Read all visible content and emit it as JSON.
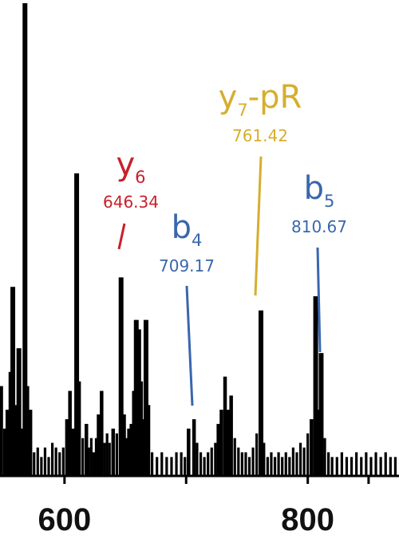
{
  "chart_data": {
    "type": "bar",
    "title": "",
    "xlabel": "",
    "ylabel": "",
    "xlim": [
      545,
      875
    ],
    "ylim": [
      0,
      100
    ],
    "x_ticks": [
      600,
      700,
      800,
      850
    ],
    "x_tick_labels": [
      {
        "value": 600,
        "label": "600"
      },
      {
        "value": 800,
        "label": "800"
      }
    ],
    "grid": false,
    "peaks": [
      {
        "mz": 545.5,
        "intensity": 11
      },
      {
        "mz": 548,
        "intensity": 19
      },
      {
        "mz": 551,
        "intensity": 10
      },
      {
        "mz": 553,
        "intensity": 14
      },
      {
        "mz": 555.5,
        "intensity": 22
      },
      {
        "mz": 557.5,
        "intensity": 40
      },
      {
        "mz": 560,
        "intensity": 15
      },
      {
        "mz": 562.5,
        "intensity": 27
      },
      {
        "mz": 565,
        "intensity": 10
      },
      {
        "mz": 567.5,
        "intensity": 100
      },
      {
        "mz": 569.5,
        "intensity": 19
      },
      {
        "mz": 572,
        "intensity": 14
      },
      {
        "mz": 575,
        "intensity": 5
      },
      {
        "mz": 578,
        "intensity": 6
      },
      {
        "mz": 581,
        "intensity": 4
      },
      {
        "mz": 584,
        "intensity": 6
      },
      {
        "mz": 587,
        "intensity": 4
      },
      {
        "mz": 590,
        "intensity": 7
      },
      {
        "mz": 593,
        "intensity": 6
      },
      {
        "mz": 596,
        "intensity": 5
      },
      {
        "mz": 599,
        "intensity": 6
      },
      {
        "mz": 602,
        "intensity": 12
      },
      {
        "mz": 604.5,
        "intensity": 18
      },
      {
        "mz": 607,
        "intensity": 10
      },
      {
        "mz": 610,
        "intensity": 64
      },
      {
        "mz": 612,
        "intensity": 20
      },
      {
        "mz": 615,
        "intensity": 8
      },
      {
        "mz": 618,
        "intensity": 11
      },
      {
        "mz": 620,
        "intensity": 6
      },
      {
        "mz": 622,
        "intensity": 8
      },
      {
        "mz": 624,
        "intensity": 5
      },
      {
        "mz": 626,
        "intensity": 8
      },
      {
        "mz": 628,
        "intensity": 13
      },
      {
        "mz": 630.5,
        "intensity": 18
      },
      {
        "mz": 633,
        "intensity": 7
      },
      {
        "mz": 635,
        "intensity": 9
      },
      {
        "mz": 637,
        "intensity": 7
      },
      {
        "mz": 640,
        "intensity": 10
      },
      {
        "mz": 643,
        "intensity": 9
      },
      {
        "mz": 646.5,
        "intensity": 42
      },
      {
        "mz": 649,
        "intensity": 13
      },
      {
        "mz": 651,
        "intensity": 8
      },
      {
        "mz": 653,
        "intensity": 10
      },
      {
        "mz": 655,
        "intensity": 11
      },
      {
        "mz": 657,
        "intensity": 18
      },
      {
        "mz": 659,
        "intensity": 33
      },
      {
        "mz": 661,
        "intensity": 31
      },
      {
        "mz": 663,
        "intensity": 20
      },
      {
        "mz": 665,
        "intensity": 12
      },
      {
        "mz": 667,
        "intensity": 33
      },
      {
        "mz": 669,
        "intensity": 15
      },
      {
        "mz": 672,
        "intensity": 5
      },
      {
        "mz": 676,
        "intensity": 4
      },
      {
        "mz": 680,
        "intensity": 5
      },
      {
        "mz": 684,
        "intensity": 4
      },
      {
        "mz": 688,
        "intensity": 4
      },
      {
        "mz": 692,
        "intensity": 5
      },
      {
        "mz": 696,
        "intensity": 5
      },
      {
        "mz": 699,
        "intensity": 4
      },
      {
        "mz": 702,
        "intensity": 10
      },
      {
        "mz": 706.5,
        "intensity": 12
      },
      {
        "mz": 709,
        "intensity": 7
      },
      {
        "mz": 712,
        "intensity": 5
      },
      {
        "mz": 715,
        "intensity": 4
      },
      {
        "mz": 718,
        "intensity": 5
      },
      {
        "mz": 721,
        "intensity": 6
      },
      {
        "mz": 724,
        "intensity": 7
      },
      {
        "mz": 726.5,
        "intensity": 11
      },
      {
        "mz": 729,
        "intensity": 14
      },
      {
        "mz": 732,
        "intensity": 21
      },
      {
        "mz": 734.5,
        "intensity": 14
      },
      {
        "mz": 737,
        "intensity": 17
      },
      {
        "mz": 740,
        "intensity": 8
      },
      {
        "mz": 743,
        "intensity": 6
      },
      {
        "mz": 746,
        "intensity": 5
      },
      {
        "mz": 749,
        "intensity": 5
      },
      {
        "mz": 752,
        "intensity": 4
      },
      {
        "mz": 755,
        "intensity": 6
      },
      {
        "mz": 758,
        "intensity": 9
      },
      {
        "mz": 761.5,
        "intensity": 35
      },
      {
        "mz": 764,
        "intensity": 7
      },
      {
        "mz": 767,
        "intensity": 4
      },
      {
        "mz": 770,
        "intensity": 5
      },
      {
        "mz": 773,
        "intensity": 4
      },
      {
        "mz": 776,
        "intensity": 5
      },
      {
        "mz": 779,
        "intensity": 4
      },
      {
        "mz": 782,
        "intensity": 5
      },
      {
        "mz": 785,
        "intensity": 4
      },
      {
        "mz": 788,
        "intensity": 6
      },
      {
        "mz": 791,
        "intensity": 5
      },
      {
        "mz": 794,
        "intensity": 7
      },
      {
        "mz": 797,
        "intensity": 6
      },
      {
        "mz": 800,
        "intensity": 9
      },
      {
        "mz": 803,
        "intensity": 12
      },
      {
        "mz": 806.5,
        "intensity": 38
      },
      {
        "mz": 808.5,
        "intensity": 14
      },
      {
        "mz": 811,
        "intensity": 26
      },
      {
        "mz": 814,
        "intensity": 8
      },
      {
        "mz": 817,
        "intensity": 5
      },
      {
        "mz": 820,
        "intensity": 4
      },
      {
        "mz": 824,
        "intensity": 4
      },
      {
        "mz": 828,
        "intensity": 5
      },
      {
        "mz": 832,
        "intensity": 4
      },
      {
        "mz": 836,
        "intensity": 4
      },
      {
        "mz": 840,
        "intensity": 5
      },
      {
        "mz": 844,
        "intensity": 4
      },
      {
        "mz": 848,
        "intensity": 5
      },
      {
        "mz": 852,
        "intensity": 4
      },
      {
        "mz": 856,
        "intensity": 5
      },
      {
        "mz": 860,
        "intensity": 4
      },
      {
        "mz": 864,
        "intensity": 5
      },
      {
        "mz": 868,
        "intensity": 4
      },
      {
        "mz": 872,
        "intensity": 4
      }
    ],
    "annotations": [
      {
        "id": "y6",
        "ion": "y",
        "sub": "6",
        "suffix": "",
        "mz_label": "646.34",
        "mz": 646.5,
        "color": "#c8202a"
      },
      {
        "id": "b4",
        "ion": "b",
        "sub": "4",
        "suffix": "",
        "mz_label": "709.17",
        "mz": 709,
        "color": "#3a66ae"
      },
      {
        "id": "y7-pR",
        "ion": "y",
        "sub": "7",
        "suffix": "-pR",
        "mz_label": "761.42",
        "mz": 761.5,
        "color": "#d6ae2e"
      },
      {
        "id": "b5",
        "ion": "b",
        "sub": "5",
        "suffix": "",
        "mz_label": "810.67",
        "mz": 811,
        "color": "#3a66ae"
      }
    ]
  }
}
